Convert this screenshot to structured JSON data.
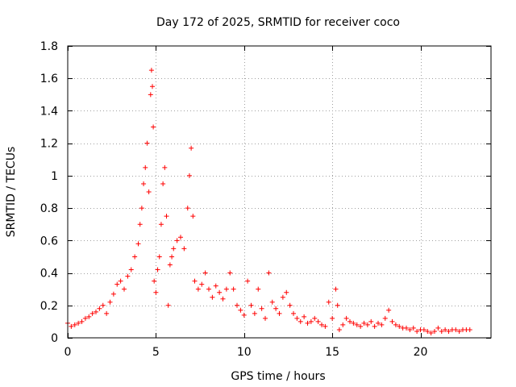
{
  "chart_data": {
    "type": "scatter",
    "title": "Day 172 of 2025, SRMTID for receiver coco",
    "xlabel": "GPS time / hours",
    "ylabel": "SRMTID / TECUs",
    "xlim": [
      0,
      24
    ],
    "ylim": [
      0,
      1.8
    ],
    "xticks": [
      0,
      5,
      10,
      15,
      20
    ],
    "yticks": [
      0,
      0.2,
      0.4,
      0.6,
      0.8,
      1,
      1.2,
      1.4,
      1.6,
      1.8
    ],
    "xtick_labels": [
      "0",
      "5",
      "10",
      "15",
      "20"
    ],
    "ytick_labels": [
      "0",
      "0.2",
      "0.4",
      "0.6",
      "0.8",
      "1",
      "1.2",
      "1.4",
      "1.6",
      "1.8"
    ],
    "grid": true,
    "marker": "+",
    "color": "#ff0000",
    "series": [
      {
        "name": "SRMTID",
        "x": [
          0.0,
          0.2,
          0.4,
          0.6,
          0.8,
          1.0,
          1.2,
          1.4,
          1.6,
          1.8,
          2.0,
          2.2,
          2.4,
          2.6,
          2.8,
          3.0,
          3.2,
          3.4,
          3.6,
          3.8,
          4.0,
          4.1,
          4.2,
          4.3,
          4.4,
          4.5,
          4.6,
          4.7,
          4.75,
          4.8,
          4.85,
          4.9,
          5.0,
          5.1,
          5.2,
          5.3,
          5.4,
          5.5,
          5.6,
          5.7,
          5.8,
          5.9,
          6.0,
          6.2,
          6.4,
          6.6,
          6.8,
          6.9,
          7.0,
          7.1,
          7.2,
          7.4,
          7.6,
          7.8,
          8.0,
          8.2,
          8.4,
          8.6,
          8.8,
          9.0,
          9.2,
          9.4,
          9.6,
          9.8,
          10.0,
          10.2,
          10.4,
          10.6,
          10.8,
          11.0,
          11.2,
          11.4,
          11.6,
          11.8,
          12.0,
          12.2,
          12.4,
          12.6,
          12.8,
          13.0,
          13.2,
          13.4,
          13.6,
          13.8,
          14.0,
          14.2,
          14.4,
          14.6,
          14.8,
          15.0,
          15.2,
          15.3,
          15.4,
          15.6,
          15.8,
          16.0,
          16.2,
          16.4,
          16.6,
          16.8,
          17.0,
          17.2,
          17.4,
          17.6,
          17.8,
          18.0,
          18.2,
          18.4,
          18.6,
          18.8,
          19.0,
          19.2,
          19.4,
          19.6,
          19.8,
          20.0,
          20.2,
          20.4,
          20.6,
          20.8,
          21.0,
          21.2,
          21.4,
          21.6,
          21.8,
          22.0,
          22.2,
          22.4,
          22.6,
          22.8
        ],
        "values": [
          0.09,
          0.07,
          0.08,
          0.09,
          0.1,
          0.12,
          0.13,
          0.15,
          0.16,
          0.18,
          0.2,
          0.15,
          0.22,
          0.27,
          0.33,
          0.35,
          0.3,
          0.38,
          0.42,
          0.5,
          0.58,
          0.7,
          0.8,
          0.95,
          1.05,
          1.2,
          0.9,
          1.5,
          1.65,
          1.55,
          1.3,
          0.35,
          0.28,
          0.42,
          0.5,
          0.7,
          0.95,
          1.05,
          0.75,
          0.2,
          0.45,
          0.5,
          0.55,
          0.6,
          0.62,
          0.55,
          0.8,
          1.0,
          1.17,
          0.75,
          0.35,
          0.3,
          0.33,
          0.4,
          0.3,
          0.25,
          0.32,
          0.28,
          0.24,
          0.3,
          0.4,
          0.3,
          0.2,
          0.17,
          0.14,
          0.35,
          0.2,
          0.15,
          0.3,
          0.18,
          0.12,
          0.4,
          0.22,
          0.18,
          0.15,
          0.25,
          0.28,
          0.2,
          0.15,
          0.12,
          0.1,
          0.13,
          0.09,
          0.1,
          0.12,
          0.1,
          0.08,
          0.07,
          0.22,
          0.12,
          0.3,
          0.2,
          0.05,
          0.08,
          0.12,
          0.1,
          0.09,
          0.08,
          0.07,
          0.09,
          0.08,
          0.1,
          0.07,
          0.09,
          0.08,
          0.12,
          0.17,
          0.1,
          0.08,
          0.07,
          0.06,
          0.06,
          0.05,
          0.06,
          0.04,
          0.05,
          0.05,
          0.04,
          0.03,
          0.04,
          0.06,
          0.04,
          0.05,
          0.04,
          0.05,
          0.05,
          0.04,
          0.05,
          0.05,
          0.05
        ]
      }
    ]
  }
}
